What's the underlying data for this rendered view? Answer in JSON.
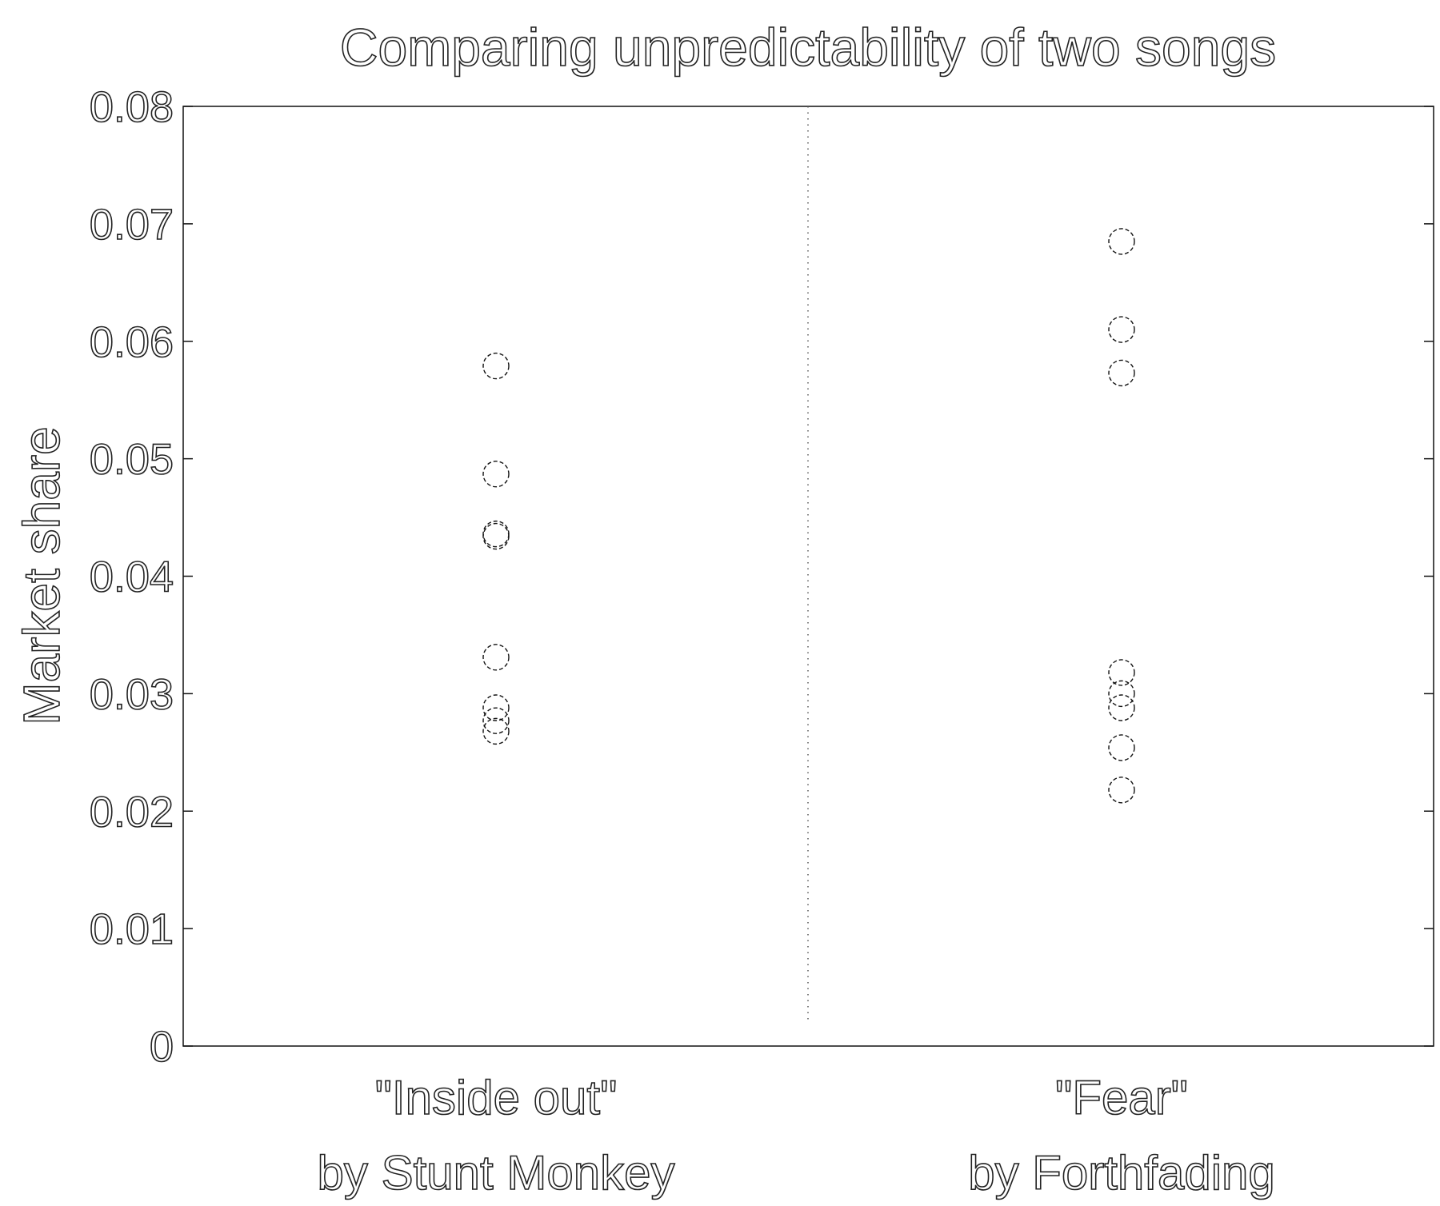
{
  "chart_data": {
    "type": "scatter",
    "title": "Comparing unpredictability of two songs",
    "xlabel": "",
    "ylabel": "Market share",
    "ylim": [
      0,
      0.08
    ],
    "yticks": [
      "0",
      "0.01",
      "0.02",
      "0.03",
      "0.04",
      "0.05",
      "0.06",
      "0.07",
      "0.08"
    ],
    "ytick_values": [
      0,
      0.01,
      0.02,
      0.03,
      0.04,
      0.05,
      0.06,
      0.07,
      0.08
    ],
    "grid": false,
    "legend": "none",
    "marker": "open-circle",
    "categories": [
      {
        "line1": "\"Inside out\"",
        "line2": "by Stunt Monkey"
      },
      {
        "line1": "\"Fear\"",
        "line2": "by Forthfading"
      }
    ],
    "series": [
      {
        "category_index": 0,
        "values": [
          0.0579,
          0.0487,
          0.0436,
          0.0434,
          0.0331,
          0.0288,
          0.0277,
          0.0268
        ]
      },
      {
        "category_index": 1,
        "values": [
          0.0685,
          0.061,
          0.0573,
          0.0318,
          0.03,
          0.0288,
          0.0254,
          0.0218
        ]
      }
    ],
    "colors": {
      "marker": "#111111",
      "axes": "#111111",
      "divider": "#555555"
    }
  }
}
